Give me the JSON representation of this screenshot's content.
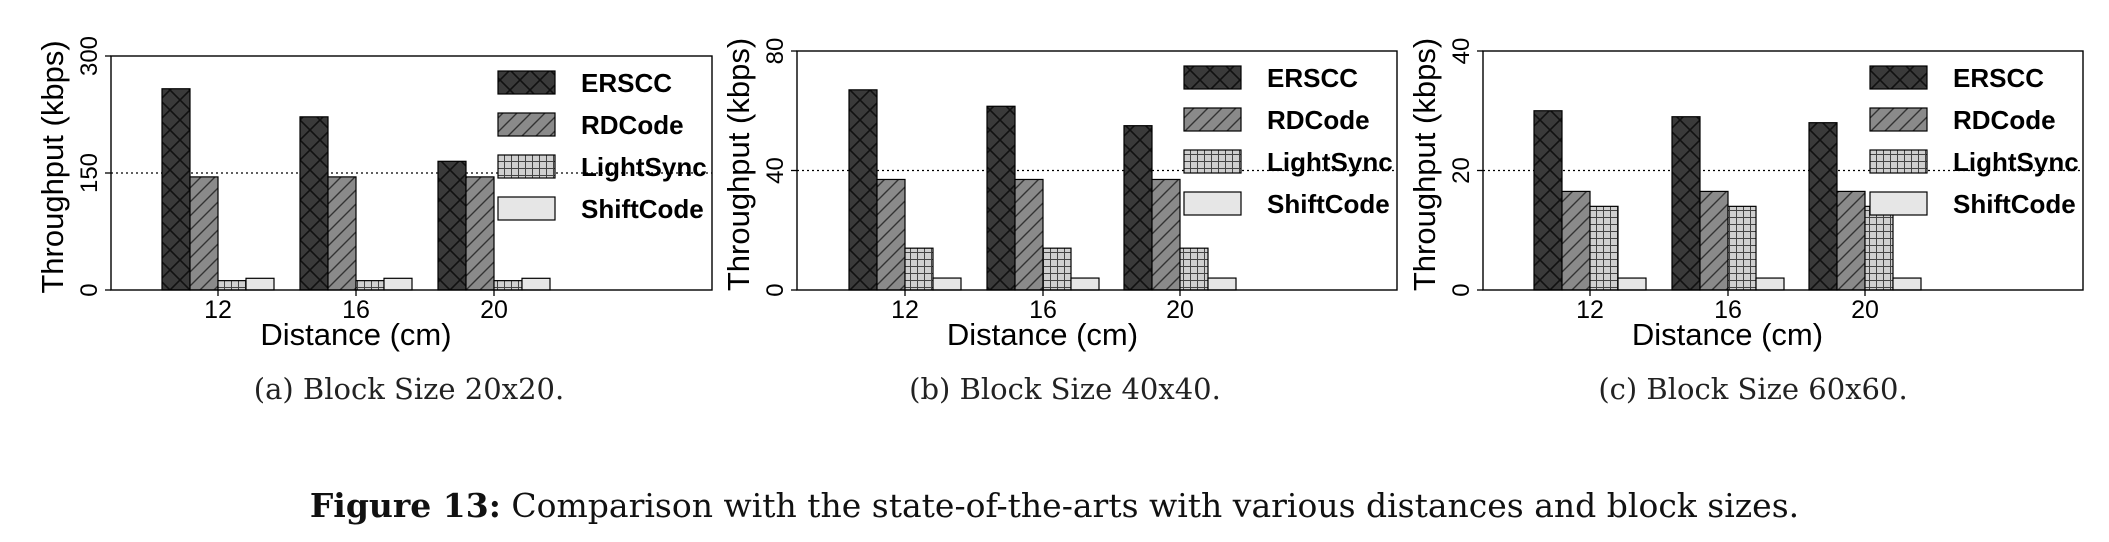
{
  "colors": {
    "ERSCC": "#3a3a3a",
    "RDCode": "#8a8a8a",
    "LightSync": "#bdbdbd",
    "ShiftCode": "#e6e6e6"
  },
  "chart_data": [
    {
      "type": "bar",
      "xlabel": "Distance (cm)",
      "ylabel": "Throughput (kbps)",
      "categories": [
        "12",
        "16",
        "20"
      ],
      "ylim": [
        0,
        300
      ],
      "yticks": [
        "0",
        "150",
        "300"
      ],
      "reference_line": 150,
      "legend_position": "top-right",
      "grid": false,
      "series": [
        {
          "name": "ERSCC",
          "values": [
            258,
            222,
            165
          ]
        },
        {
          "name": "RDCode",
          "values": [
            145,
            145,
            145
          ]
        },
        {
          "name": "LightSync",
          "values": [
            12,
            12,
            12
          ]
        },
        {
          "name": "ShiftCode",
          "values": [
            15,
            15,
            15
          ]
        }
      ],
      "caption": "(a) Block Size 20x20."
    },
    {
      "type": "bar",
      "xlabel": "Distance (cm)",
      "ylabel": "Throughput (kbps)",
      "categories": [
        "12",
        "16",
        "20"
      ],
      "ylim": [
        0,
        80
      ],
      "yticks": [
        "0",
        "40",
        "80"
      ],
      "reference_line": 40,
      "legend_position": "top-right",
      "grid": false,
      "series": [
        {
          "name": "ERSCC",
          "values": [
            67,
            61.5,
            55
          ]
        },
        {
          "name": "RDCode",
          "values": [
            37,
            37,
            37
          ]
        },
        {
          "name": "LightSync",
          "values": [
            14,
            14,
            14
          ]
        },
        {
          "name": "ShiftCode",
          "values": [
            4,
            4,
            4
          ]
        }
      ],
      "caption": "(b) Block Size 40x40."
    },
    {
      "type": "bar",
      "xlabel": "Distance (cm)",
      "ylabel": "Throughput (kbps)",
      "categories": [
        "12",
        "16",
        "20"
      ],
      "ylim": [
        0,
        40
      ],
      "yticks": [
        "0",
        "20",
        "40"
      ],
      "reference_line": 20,
      "legend_position": "top-right",
      "grid": false,
      "series": [
        {
          "name": "ERSCC",
          "values": [
            30,
            29,
            28
          ]
        },
        {
          "name": "RDCode",
          "values": [
            16.5,
            16.5,
            16.5
          ]
        },
        {
          "name": "LightSync",
          "values": [
            14,
            14,
            14
          ]
        },
        {
          "name": "ShiftCode",
          "values": [
            2,
            2,
            2
          ]
        }
      ],
      "caption": "(c) Block Size 60x60."
    }
  ],
  "figure": {
    "label": "Figure 13:",
    "text": " Comparison with the state-of-the-arts with various distances and block sizes."
  }
}
